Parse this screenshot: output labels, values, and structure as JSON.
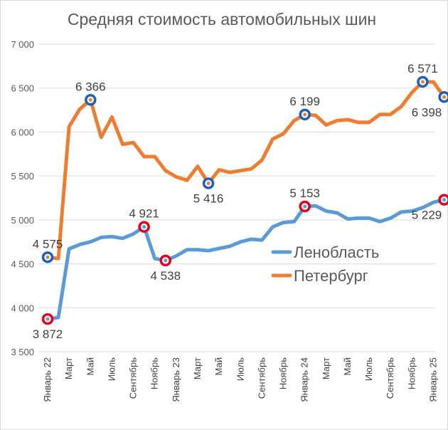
{
  "chart_data": {
    "type": "line",
    "title": "Средняя стоимость автомобильных шин",
    "xlabel": "",
    "ylabel": "",
    "ylim": [
      3500,
      7000
    ],
    "yticks": [
      3500,
      4000,
      4500,
      5000,
      5500,
      6000,
      6500,
      7000
    ],
    "ytick_labels": [
      "3 500",
      "4 000",
      "4 500",
      "5 000",
      "5 500",
      "6 000",
      "6 500",
      "7 000"
    ],
    "x_labels": [
      "Январь 22",
      "Март",
      "Май",
      "Июль",
      "Сентябрь",
      "Ноябрь",
      "Январь 23",
      "Март",
      "Май",
      "Июль",
      "Сентябрь",
      "Ноябрь",
      "Январь 24",
      "Март",
      "Май",
      "Июль",
      "Сентябрь",
      "Ноябрь",
      "Январь 25"
    ],
    "x_label_every": 2,
    "grid": "horizontal",
    "legend_position": "right",
    "series": [
      {
        "name": "Ленобласть",
        "color": "#5b9bd5",
        "values": [
          3872,
          3890,
          4670,
          4720,
          4750,
          4800,
          4810,
          4790,
          4840,
          4921,
          4560,
          4538,
          4590,
          4660,
          4660,
          4650,
          4675,
          4700,
          4750,
          4780,
          4770,
          4920,
          4970,
          4980,
          5153,
          5160,
          5100,
          5080,
          5010,
          5020,
          5020,
          4980,
          5020,
          5090,
          5100,
          5140,
          5200,
          5229
        ],
        "labels": [
          {
            "index": 0,
            "text": "3 872",
            "pos": "below"
          },
          {
            "index": 9,
            "text": "4 921",
            "pos": "above"
          },
          {
            "index": 11,
            "text": "4 538",
            "pos": "below"
          },
          {
            "index": 24,
            "text": "5 153",
            "pos": "above"
          },
          {
            "index": 37,
            "text": "5 229",
            "pos": "below"
          }
        ],
        "marker_color": "#e5001e"
      },
      {
        "name": "Петербург",
        "color": "#ed7d31",
        "values": [
          4575,
          4560,
          6060,
          6260,
          6366,
          5940,
          6170,
          5860,
          5880,
          5720,
          5720,
          5560,
          5490,
          5450,
          5610,
          5416,
          5570,
          5540,
          5560,
          5580,
          5680,
          5920,
          5980,
          6130,
          6199,
          6190,
          6080,
          6130,
          6140,
          6110,
          6110,
          6200,
          6200,
          6290,
          6450,
          6571,
          6570,
          6398
        ],
        "labels": [
          {
            "index": 0,
            "text": "4 575",
            "pos": "above"
          },
          {
            "index": 4,
            "text": "6 366",
            "pos": "above"
          },
          {
            "index": 15,
            "text": "5 416",
            "pos": "below"
          },
          {
            "index": 24,
            "text": "6 199",
            "pos": "above"
          },
          {
            "index": 35,
            "text": "6 571",
            "pos": "above"
          },
          {
            "index": 37,
            "text": "6 398",
            "pos": "below"
          }
        ],
        "marker_color": "#1f5fbf"
      }
    ]
  }
}
